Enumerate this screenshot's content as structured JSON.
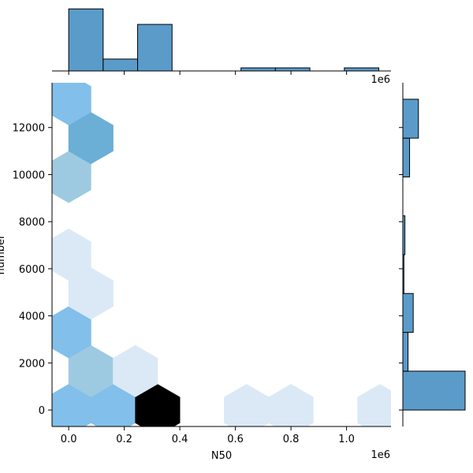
{
  "chart_data": {
    "type": "jointplot-hexbin",
    "xlabel": "N50",
    "ylabel": "number",
    "x_offset_label": "1e6",
    "xlim": [
      -60000,
      1160000
    ],
    "ylim": [
      -700,
      13900
    ],
    "x_ticks": [
      0,
      0.2,
      0.4,
      0.6,
      0.8,
      1.0
    ],
    "x_tick_labels": [
      "0.0",
      "0.2",
      "0.4",
      "0.6",
      "0.8",
      "1.0"
    ],
    "y_ticks": [
      0,
      2000,
      4000,
      6000,
      8000,
      10000,
      12000
    ],
    "y_tick_labels": [
      "0",
      "2000",
      "4000",
      "6000",
      "8000",
      "10000",
      "12000"
    ],
    "hexbins": [
      {
        "x": 0,
        "y": 0,
        "count": 3
      },
      {
        "x": 160000,
        "y": 0,
        "count": 3
      },
      {
        "x": 320000,
        "y": 0,
        "count": 9
      },
      {
        "x": 640000,
        "y": 0,
        "count": 1
      },
      {
        "x": 800000,
        "y": 0,
        "count": 1
      },
      {
        "x": 1120000,
        "y": 0,
        "count": 1
      },
      {
        "x": 80000,
        "y": 1650,
        "count": 2
      },
      {
        "x": 240000,
        "y": 1650,
        "count": 0.5
      },
      {
        "x": 0,
        "y": 3300,
        "count": 3
      },
      {
        "x": 80000,
        "y": 4950,
        "count": 1
      },
      {
        "x": 0,
        "y": 6600,
        "count": 1
      },
      {
        "x": 0,
        "y": 9900,
        "count": 2
      },
      {
        "x": 80000,
        "y": 11550,
        "count": 4
      },
      {
        "x": 0,
        "y": 13200,
        "count": 3
      }
    ],
    "top_histogram": {
      "bins": [
        {
          "x0": 0,
          "x1": 124000,
          "count": 12
        },
        {
          "x0": 124000,
          "x1": 248000,
          "count": 2.3
        },
        {
          "x0": 248000,
          "x1": 372000,
          "count": 9
        },
        {
          "x0": 372000,
          "x1": 496000,
          "count": 0
        },
        {
          "x0": 496000,
          "x1": 620000,
          "count": 0
        },
        {
          "x0": 620000,
          "x1": 744000,
          "count": 0.6
        },
        {
          "x0": 744000,
          "x1": 868000,
          "count": 0.6
        },
        {
          "x0": 868000,
          "x1": 992000,
          "count": 0
        },
        {
          "x0": 992000,
          "x1": 1116000,
          "count": 0.6
        }
      ],
      "max": 12.5
    },
    "right_histogram": {
      "bins": [
        {
          "y0": 0,
          "y1": 1650,
          "count": 12
        },
        {
          "y0": 1650,
          "y1": 3300,
          "count": 1.0
        },
        {
          "y0": 3300,
          "y1": 4950,
          "count": 2.0
        },
        {
          "y0": 4950,
          "y1": 6600,
          "count": 0.2
        },
        {
          "y0": 6600,
          "y1": 8250,
          "count": 0.4
        },
        {
          "y0": 8250,
          "y1": 9900,
          "count": 0
        },
        {
          "y0": 9900,
          "y1": 11550,
          "count": 1.3
        },
        {
          "y0": 11550,
          "y1": 13200,
          "count": 3.0
        }
      ],
      "max": 12.0
    },
    "colors": {
      "hist_fill": "#5a9bca",
      "edge": "#000000",
      "hex_ramp": [
        "#f2f7fd",
        "#dbe9f6",
        "#c6dbef",
        "#9ecae1",
        "#82bfea",
        "#6baed6",
        "#000000"
      ]
    }
  }
}
